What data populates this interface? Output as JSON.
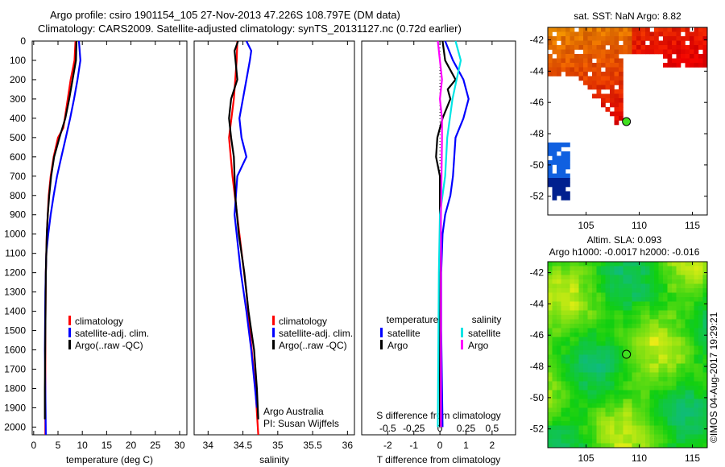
{
  "title_line1": "Argo profile: csiro 1901154_105 27-Nov-2013 47.226S 108.797E (DM data)",
  "title_line2": "Climatology: CARS2009. Satellite-adjusted climatology: synTS_20131127.nc (0.72d earlier)",
  "footer": "©IMOS 04-Aug-2017 19:29:21",
  "colors": {
    "climatology": "#ff0000",
    "satellite": "#0000ff",
    "argo": "#000000",
    "sal_satellite": "#00e5e5",
    "sal_argo": "#ff00ff"
  },
  "chart_data": [
    {
      "type": "line",
      "id": "temperature",
      "xlabel": "temperature (deg C)",
      "ylabel": "",
      "xlim": [
        -0.3,
        31.5
      ],
      "ylim": [
        2040,
        0
      ],
      "xticks": [
        0,
        5,
        10,
        15,
        20,
        25,
        30
      ],
      "yticks": [
        0,
        100,
        200,
        300,
        400,
        500,
        600,
        700,
        800,
        900,
        1000,
        1100,
        1200,
        1300,
        1400,
        1500,
        1600,
        1700,
        1800,
        1900,
        2000
      ],
      "legend": [
        "climatology",
        "satellite-adj. clim.",
        "Argo(..raw -QC)"
      ],
      "legend_position": "bottom-center",
      "series": [
        {
          "name": "climatology",
          "color": "#ff0000",
          "depth": [
            0,
            100,
            200,
            300,
            400,
            450,
            500,
            600,
            700,
            800,
            900,
            1000,
            1200,
            1500,
            1800,
            2040
          ],
          "values": [
            8.6,
            8.4,
            7.6,
            7.0,
            6.4,
            6.1,
            5.0,
            4.1,
            3.5,
            3.1,
            2.9,
            2.7,
            2.5,
            2.4,
            2.4,
            2.4
          ]
        },
        {
          "name": "satellite-adj. clim.",
          "color": "#0000ff",
          "depth": [
            0,
            100,
            200,
            300,
            400,
            500,
            600,
            700,
            800,
            900,
            1000,
            1100,
            1300,
            1600,
            2040
          ],
          "values": [
            9.3,
            9.6,
            9.0,
            8.3,
            7.5,
            6.6,
            5.7,
            4.8,
            4.1,
            3.5,
            3.0,
            2.6,
            2.4,
            2.3,
            2.5
          ]
        },
        {
          "name": "Argo(..raw -QC)",
          "color": "#000000",
          "depth": [
            0,
            100,
            200,
            300,
            400,
            500,
            600,
            700,
            800,
            900,
            1000,
            1200,
            1500,
            1800,
            1960
          ],
          "values": [
            8.8,
            8.7,
            8.0,
            7.3,
            6.5,
            5.3,
            4.2,
            3.6,
            3.2,
            2.9,
            2.7,
            2.5,
            2.4,
            2.3,
            2.3
          ]
        }
      ]
    },
    {
      "type": "line",
      "id": "salinity",
      "xlabel": "salinity",
      "xlim": [
        33.8,
        36.1
      ],
      "ylim": [
        2040,
        0
      ],
      "xticks": [
        34,
        34.5,
        35,
        35.5,
        36
      ],
      "legend": [
        "climatology",
        "satellite-adj. clim.",
        "Argo(..raw -QC)"
      ],
      "annotation": [
        "Argo Australia",
        "PI: Susan Wijffels"
      ],
      "series": [
        {
          "name": "climatology",
          "color": "#ff0000",
          "depth": [
            0,
            100,
            300,
            500,
            700,
            1000,
            1300,
            1500,
            1800,
            2040
          ],
          "values": [
            34.42,
            34.41,
            34.37,
            34.3,
            34.35,
            34.45,
            34.55,
            34.6,
            34.68,
            34.72
          ]
        },
        {
          "name": "satellite-adj. clim.",
          "color": "#0000ff",
          "depth": [
            0,
            50,
            100,
            200,
            400,
            500,
            600,
            700,
            900,
            1200,
            1400,
            1600,
            1900
          ],
          "values": [
            34.55,
            34.62,
            34.6,
            34.55,
            34.45,
            34.48,
            34.55,
            34.42,
            34.38,
            34.47,
            34.55,
            34.62,
            34.7
          ]
        },
        {
          "name": "Argo(..raw -QC)",
          "color": "#000000",
          "depth": [
            0,
            50,
            200,
            300,
            400,
            500,
            600,
            800,
            1000,
            1200,
            1400,
            1600,
            1800,
            1960
          ],
          "values": [
            34.43,
            34.38,
            34.42,
            34.33,
            34.3,
            34.33,
            34.37,
            34.39,
            34.44,
            34.52,
            34.58,
            34.66,
            34.7,
            34.72
          ]
        }
      ]
    },
    {
      "type": "line",
      "id": "differences",
      "xlabel": "T difference from climatology",
      "x2label": "S difference from climatology",
      "xlim": [
        -3.0,
        2.9
      ],
      "ylim": [
        2040,
        0
      ],
      "xticks": [
        -2,
        -1,
        0,
        1,
        2
      ],
      "x2ticks": [
        -0.5,
        -0.25,
        0,
        0.25,
        0.5
      ],
      "x2_scale": 4,
      "legend_headers": [
        "temperature",
        "salinity"
      ],
      "legend": [
        "satellite",
        "Argo",
        "satellite",
        "Argo"
      ],
      "series": [
        {
          "name": "temperature satellite",
          "color": "#0000ff",
          "axis": "T",
          "depth": [
            0,
            100,
            200,
            300,
            400,
            500,
            600,
            700,
            800,
            900,
            1000,
            1200,
            1500,
            2000
          ],
          "values": [
            0.2,
            0.5,
            0.9,
            1.1,
            0.9,
            0.6,
            0.55,
            0.5,
            0.4,
            0.2,
            0.1,
            0.05,
            0.05,
            0.1
          ]
        },
        {
          "name": "temperature Argo",
          "color": "#000000",
          "axis": "T",
          "depth": [
            0,
            100,
            200,
            250,
            300,
            400,
            500,
            600,
            700,
            900,
            1200,
            2000
          ],
          "values": [
            0.1,
            0.2,
            0.6,
            0.3,
            0.4,
            0.1,
            -0.1,
            -0.15,
            0.0,
            0.0,
            0.0,
            0.0
          ]
        },
        {
          "name": "salinity satellite",
          "color": "#00e5e5",
          "axis": "S",
          "depth": [
            0,
            100,
            200,
            300,
            500,
            700,
            900,
            1200,
            2000
          ],
          "values": [
            0.15,
            0.2,
            0.16,
            0.12,
            0.07,
            0.05,
            0.0,
            -0.01,
            -0.02
          ]
        },
        {
          "name": "salinity Argo",
          "color": "#ff00ff",
          "axis": "S",
          "depth": [
            0,
            100,
            200,
            300,
            400,
            500,
            700,
            900,
            1500,
            2000
          ],
          "values": [
            -0.02,
            0.0,
            0.02,
            0.0,
            0.02,
            0.02,
            0.015,
            0.01,
            0.01,
            0.01
          ]
        }
      ]
    },
    {
      "type": "heatmap",
      "id": "sst-map",
      "title": "sat. SST: NaN Argo: 8.82",
      "xlim": [
        101.4,
        116.4
      ],
      "ylim": [
        -53.2,
        -41.2
      ],
      "xticks": [
        105,
        110,
        115
      ],
      "yticks": [
        -42,
        -44,
        -46,
        -48,
        -50,
        -52
      ],
      "argo_position": [
        108.797,
        -47.226
      ]
    },
    {
      "type": "heatmap",
      "id": "sla-map",
      "title_line1": "Altim. SLA: 0.093",
      "title_line2": "Argo h1000: -0.0017 h2000: -0.016",
      "xlim": [
        101.4,
        116.4
      ],
      "ylim": [
        -53.2,
        -41.3
      ],
      "xticks": [
        105,
        110,
        115
      ],
      "yticks": [
        -42,
        -44,
        -46,
        -48,
        -50,
        -52
      ],
      "argo_position": [
        108.797,
        -47.226
      ]
    }
  ]
}
